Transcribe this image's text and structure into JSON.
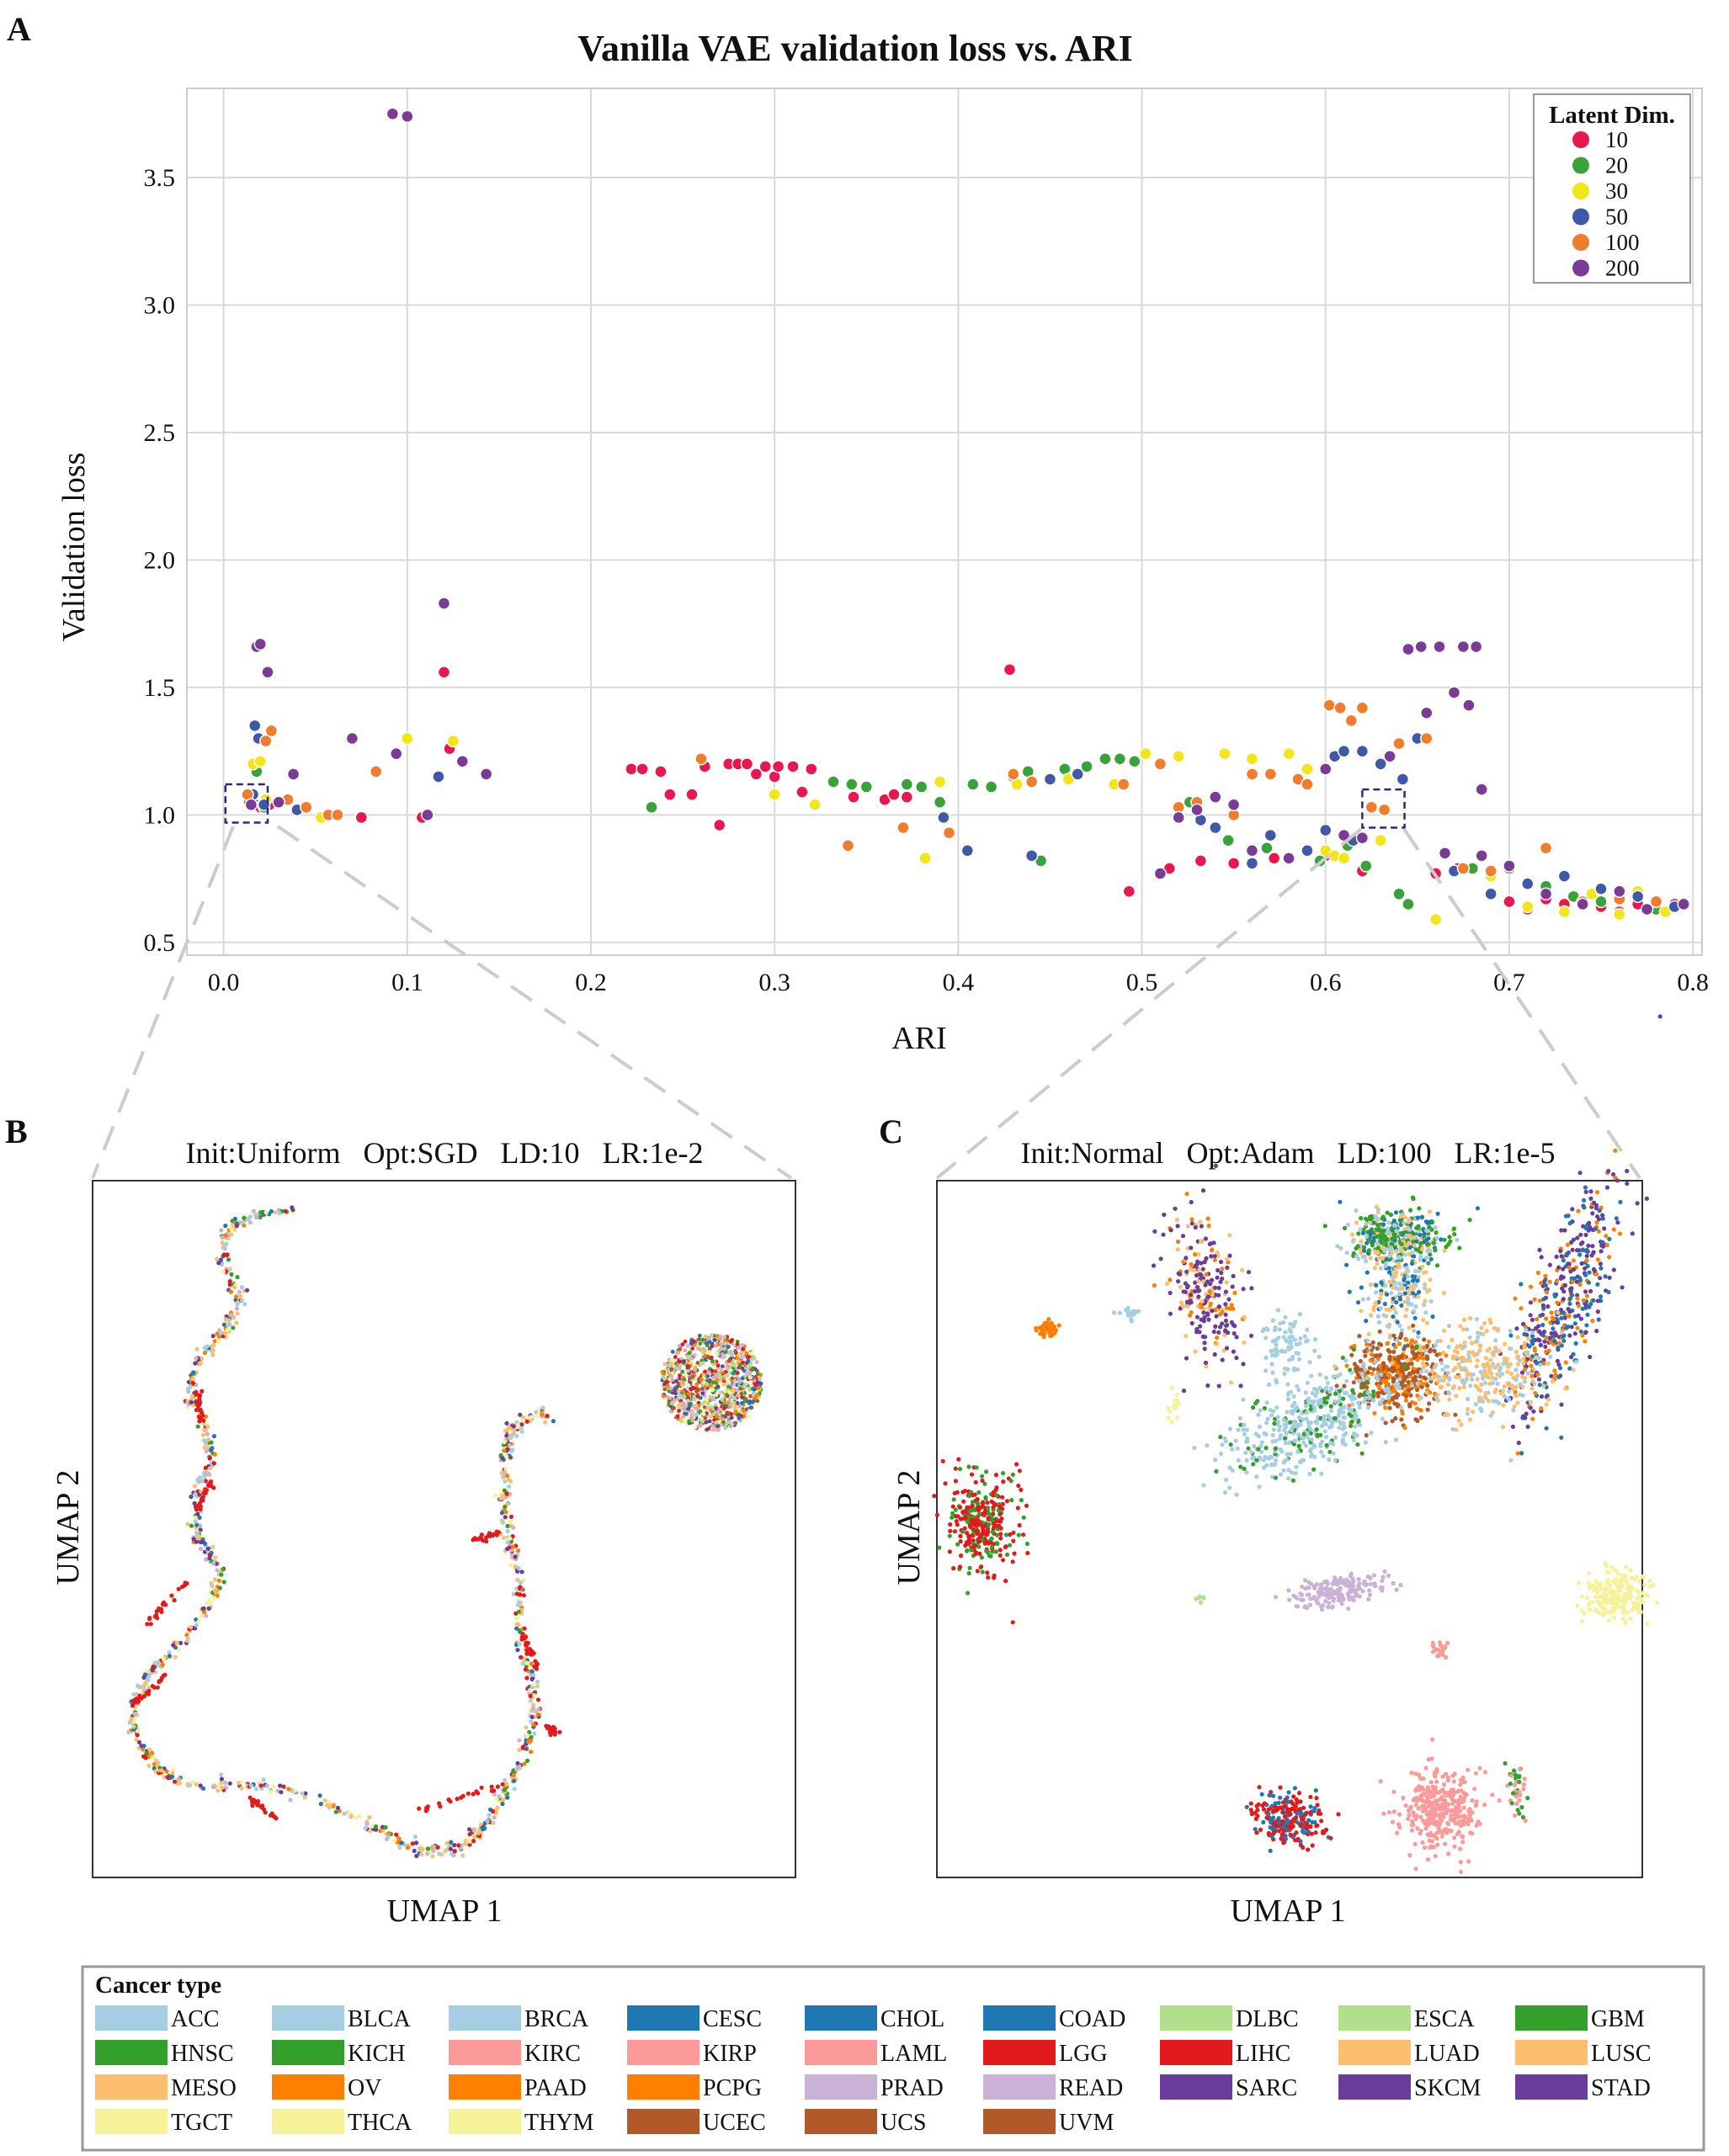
{
  "colors": {
    "ld10": "#e8174d",
    "ld20": "#3aa23a",
    "ld30": "#f2e51a",
    "ld50": "#3f58a8",
    "ld100": "#ef7d2d",
    "ld200": "#7a3a96",
    "ACC": "#a6cee3",
    "BLCA": "#a6cee3",
    "BRCA": "#a6cee3",
    "CESC": "#1f78b4",
    "CHOL": "#1f78b4",
    "COAD": "#1f78b4",
    "DLBC": "#b2df8a",
    "ESCA": "#b2df8a",
    "GBM": "#33a02c",
    "HNSC": "#33a02c",
    "KICH": "#33a02c",
    "KIRC": "#fb9a99",
    "KIRP": "#fb9a99",
    "LAML": "#fb9a99",
    "LGG": "#e31a1c",
    "LIHC": "#e31a1c",
    "LUAD": "#fdbf6f",
    "LUSC": "#fdbf6f",
    "MESO": "#fdbf6f",
    "OV": "#ff7f00",
    "PAAD": "#ff7f00",
    "PCPG": "#ff7f00",
    "PRAD": "#cab2d6",
    "READ": "#cab2d6",
    "SARC": "#6a3d9a",
    "SKCM": "#6a3d9a",
    "STAD": "#6a3d9a",
    "TGCT": "#f6f29a",
    "THCA": "#f6f29a",
    "THYM": "#f6f29a",
    "UCEC": "#b15928",
    "UCS": "#b15928",
    "UVM": "#b15928"
  },
  "chart_data": [
    {
      "panel_label": "A",
      "type": "scatter",
      "title": "Vanilla VAE validation loss vs. ARI",
      "xlabel": "ARI",
      "ylabel": "Validation loss",
      "xlim": [
        -0.02,
        0.805
      ],
      "ylim": [
        0.45,
        3.85
      ],
      "xticks": [
        "0.0",
        "0.1",
        "0.2",
        "0.3",
        "0.4",
        "0.5",
        "0.6",
        "0.7",
        "0.8"
      ],
      "xtick_values": [
        0,
        0.1,
        0.2,
        0.3,
        0.4,
        0.5,
        0.6,
        0.7,
        0.8
      ],
      "yticks": [
        "0.5",
        "1.0",
        "1.5",
        "2.0",
        "2.5",
        "3.0",
        "3.5"
      ],
      "ytick_values": [
        0.5,
        1.0,
        1.5,
        2.0,
        2.5,
        3.0,
        3.5
      ],
      "grid": true,
      "legend_title": "Latent Dim.",
      "legend_position": "top-right",
      "series": [
        {
          "name": "10",
          "color_key": "ld10",
          "points": [
            [
              0.017,
              1.04
            ],
            [
              0.02,
              1.03
            ],
            [
              0.025,
              1.04
            ],
            [
              0.075,
              0.99
            ],
            [
              0.12,
              1.56
            ],
            [
              0.123,
              1.26
            ],
            [
              0.108,
              0.99
            ],
            [
              0.222,
              1.18
            ],
            [
              0.228,
              1.18
            ],
            [
              0.238,
              1.17
            ],
            [
              0.243,
              1.08
            ],
            [
              0.255,
              1.08
            ],
            [
              0.262,
              1.19
            ],
            [
              0.27,
              0.96
            ],
            [
              0.275,
              1.2
            ],
            [
              0.28,
              1.2
            ],
            [
              0.285,
              1.2
            ],
            [
              0.29,
              1.16
            ],
            [
              0.295,
              1.19
            ],
            [
              0.3,
              1.15
            ],
            [
              0.302,
              1.19
            ],
            [
              0.31,
              1.19
            ],
            [
              0.315,
              1.09
            ],
            [
              0.32,
              1.18
            ],
            [
              0.343,
              1.07
            ],
            [
              0.35,
              1.11
            ],
            [
              0.36,
              1.06
            ],
            [
              0.365,
              1.08
            ],
            [
              0.372,
              1.07
            ],
            [
              0.428,
              1.57
            ],
            [
              0.493,
              0.7
            ],
            [
              0.515,
              0.79
            ],
            [
              0.532,
              0.82
            ],
            [
              0.55,
              0.81
            ],
            [
              0.56,
              0.81
            ],
            [
              0.572,
              0.83
            ],
            [
              0.6,
              0.84
            ],
            [
              0.62,
              0.78
            ],
            [
              0.66,
              0.77
            ],
            [
              0.672,
              0.79
            ],
            [
              0.7,
              0.66
            ],
            [
              0.71,
              0.63
            ],
            [
              0.72,
              0.67
            ],
            [
              0.73,
              0.65
            ],
            [
              0.74,
              0.66
            ],
            [
              0.75,
              0.64
            ],
            [
              0.76,
              0.62
            ],
            [
              0.77,
              0.65
            ],
            [
              0.78,
              0.64
            ],
            [
              0.79,
              0.65
            ]
          ]
        },
        {
          "name": "20",
          "color_key": "ld20",
          "points": [
            [
              0.014,
              1.05
            ],
            [
              0.018,
              1.17
            ],
            [
              0.022,
              1.03
            ],
            [
              0.233,
              1.03
            ],
            [
              0.332,
              1.13
            ],
            [
              0.342,
              1.12
            ],
            [
              0.35,
              1.11
            ],
            [
              0.372,
              1.12
            ],
            [
              0.38,
              1.11
            ],
            [
              0.39,
              1.05
            ],
            [
              0.408,
              1.12
            ],
            [
              0.418,
              1.11
            ],
            [
              0.43,
              1.15
            ],
            [
              0.438,
              1.17
            ],
            [
              0.445,
              0.82
            ],
            [
              0.458,
              1.18
            ],
            [
              0.47,
              1.19
            ],
            [
              0.48,
              1.22
            ],
            [
              0.488,
              1.22
            ],
            [
              0.496,
              1.21
            ],
            [
              0.526,
              1.05
            ],
            [
              0.547,
              0.9
            ],
            [
              0.56,
              0.86
            ],
            [
              0.568,
              0.87
            ],
            [
              0.597,
              0.82
            ],
            [
              0.612,
              0.88
            ],
            [
              0.622,
              0.8
            ],
            [
              0.64,
              0.69
            ],
            [
              0.645,
              0.65
            ],
            [
              0.68,
              0.79
            ],
            [
              0.7,
              0.79
            ],
            [
              0.72,
              0.72
            ],
            [
              0.735,
              0.68
            ],
            [
              0.75,
              0.66
            ],
            [
              0.78,
              0.63
            ]
          ]
        },
        {
          "name": "30",
          "color_key": "ld30",
          "points": [
            [
              0.016,
              1.2
            ],
            [
              0.02,
              1.21
            ],
            [
              0.023,
              1.06
            ],
            [
              0.053,
              0.99
            ],
            [
              0.1,
              1.3
            ],
            [
              0.125,
              1.29
            ],
            [
              0.3,
              1.08
            ],
            [
              0.322,
              1.04
            ],
            [
              0.382,
              0.83
            ],
            [
              0.39,
              1.13
            ],
            [
              0.432,
              1.12
            ],
            [
              0.46,
              1.14
            ],
            [
              0.485,
              1.12
            ],
            [
              0.502,
              1.24
            ],
            [
              0.52,
              1.23
            ],
            [
              0.545,
              1.24
            ],
            [
              0.56,
              1.22
            ],
            [
              0.58,
              1.24
            ],
            [
              0.59,
              1.18
            ],
            [
              0.6,
              0.86
            ],
            [
              0.605,
              0.84
            ],
            [
              0.61,
              0.83
            ],
            [
              0.63,
              0.9
            ],
            [
              0.66,
              0.59
            ],
            [
              0.69,
              0.76
            ],
            [
              0.71,
              0.64
            ],
            [
              0.73,
              0.62
            ],
            [
              0.745,
              0.69
            ],
            [
              0.76,
              0.61
            ],
            [
              0.77,
              0.7
            ],
            [
              0.785,
              0.62
            ]
          ]
        },
        {
          "name": "50",
          "color_key": "ld50",
          "points": [
            [
              0.016,
              1.08
            ],
            [
              0.017,
              1.35
            ],
            [
              0.019,
              1.3
            ],
            [
              0.022,
              1.04
            ],
            [
              0.04,
              1.02
            ],
            [
              0.117,
              1.15
            ],
            [
              0.392,
              0.99
            ],
            [
              0.405,
              0.86
            ],
            [
              0.44,
              0.84
            ],
            [
              0.45,
              1.14
            ],
            [
              0.465,
              1.16
            ],
            [
              0.52,
              1.03
            ],
            [
              0.532,
              0.98
            ],
            [
              0.54,
              0.95
            ],
            [
              0.56,
              0.81
            ],
            [
              0.57,
              0.92
            ],
            [
              0.59,
              0.86
            ],
            [
              0.6,
              0.94
            ],
            [
              0.605,
              1.23
            ],
            [
              0.61,
              1.25
            ],
            [
              0.615,
              0.9
            ],
            [
              0.62,
              1.25
            ],
            [
              0.63,
              1.2
            ],
            [
              0.642,
              1.14
            ],
            [
              0.65,
              1.3
            ],
            [
              0.67,
              0.78
            ],
            [
              0.69,
              0.69
            ],
            [
              0.71,
              0.73
            ],
            [
              0.73,
              0.76
            ],
            [
              0.75,
              0.71
            ],
            [
              0.77,
              0.68
            ],
            [
              0.79,
              0.64
            ]
          ]
        },
        {
          "name": "100",
          "color_key": "ld100",
          "points": [
            [
              0.013,
              1.08
            ],
            [
              0.023,
              1.29
            ],
            [
              0.026,
              1.33
            ],
            [
              0.035,
              1.06
            ],
            [
              0.045,
              1.03
            ],
            [
              0.057,
              1.0
            ],
            [
              0.062,
              1.0
            ],
            [
              0.083,
              1.17
            ],
            [
              0.26,
              1.22
            ],
            [
              0.34,
              0.88
            ],
            [
              0.37,
              0.95
            ],
            [
              0.395,
              0.93
            ],
            [
              0.43,
              1.16
            ],
            [
              0.44,
              1.13
            ],
            [
              0.49,
              1.12
            ],
            [
              0.51,
              1.2
            ],
            [
              0.52,
              1.03
            ],
            [
              0.53,
              1.05
            ],
            [
              0.55,
              1.0
            ],
            [
              0.56,
              1.16
            ],
            [
              0.57,
              1.16
            ],
            [
              0.585,
              1.14
            ],
            [
              0.59,
              1.12
            ],
            [
              0.602,
              1.43
            ],
            [
              0.608,
              1.42
            ],
            [
              0.614,
              1.37
            ],
            [
              0.62,
              1.42
            ],
            [
              0.625,
              1.03
            ],
            [
              0.632,
              1.02
            ],
            [
              0.64,
              1.28
            ],
            [
              0.655,
              1.3
            ],
            [
              0.675,
              0.79
            ],
            [
              0.69,
              0.78
            ],
            [
              0.72,
              0.87
            ],
            [
              0.74,
              0.66
            ],
            [
              0.76,
              0.67
            ],
            [
              0.78,
              0.66
            ]
          ]
        },
        {
          "name": "200",
          "color_key": "ld200",
          "points": [
            [
              0.092,
              3.75
            ],
            [
              0.1,
              3.74
            ],
            [
              0.018,
              1.66
            ],
            [
              0.02,
              1.67
            ],
            [
              0.024,
              1.56
            ],
            [
              0.015,
              1.04
            ],
            [
              0.038,
              1.16
            ],
            [
              0.03,
              1.05
            ],
            [
              0.07,
              1.3
            ],
            [
              0.094,
              1.24
            ],
            [
              0.111,
              1.0
            ],
            [
              0.12,
              1.83
            ],
            [
              0.13,
              1.21
            ],
            [
              0.143,
              1.16
            ],
            [
              0.51,
              0.77
            ],
            [
              0.52,
              0.99
            ],
            [
              0.53,
              1.02
            ],
            [
              0.54,
              1.07
            ],
            [
              0.55,
              1.04
            ],
            [
              0.56,
              0.86
            ],
            [
              0.58,
              0.83
            ],
            [
              0.6,
              1.18
            ],
            [
              0.61,
              0.92
            ],
            [
              0.62,
              0.91
            ],
            [
              0.635,
              1.23
            ],
            [
              0.645,
              1.65
            ],
            [
              0.652,
              1.66
            ],
            [
              0.662,
              1.66
            ],
            [
              0.675,
              1.66
            ],
            [
              0.682,
              1.66
            ],
            [
              0.655,
              1.4
            ],
            [
              0.67,
              1.48
            ],
            [
              0.678,
              1.43
            ],
            [
              0.685,
              1.1
            ],
            [
              0.665,
              0.85
            ],
            [
              0.685,
              0.84
            ],
            [
              0.7,
              0.8
            ],
            [
              0.72,
              0.69
            ],
            [
              0.74,
              0.65
            ],
            [
              0.76,
              0.7
            ],
            [
              0.775,
              0.63
            ],
            [
              0.795,
              0.65
            ]
          ]
        }
      ],
      "zoom_boxes": [
        {
          "x": [
            0.001,
            0.024
          ],
          "y": [
            0.97,
            1.12
          ],
          "links_to": "B"
        },
        {
          "x": [
            0.62,
            0.643
          ],
          "y": [
            0.95,
            1.1
          ],
          "links_to": "C"
        }
      ]
    },
    {
      "panel_label": "B",
      "type": "scatter",
      "title": "Init:Uniform   Opt:SGD   LD:10   LR:1e-2",
      "xlabel": "UMAP 1",
      "ylabel": "UMAP 2",
      "note": "points colored by cancer type"
    },
    {
      "panel_label": "C",
      "type": "scatter",
      "title": "Init:Normal   Opt:Adam   LD:100   LR:1e-5",
      "xlabel": "UMAP 1",
      "ylabel": "UMAP 2",
      "note": "points colored by cancer type"
    }
  ],
  "cancer_legend": {
    "title": "Cancer type",
    "items": [
      "ACC",
      "BLCA",
      "BRCA",
      "CESC",
      "CHOL",
      "COAD",
      "DLBC",
      "ESCA",
      "GBM",
      "HNSC",
      "KICH",
      "KIRC",
      "KIRP",
      "LAML",
      "LGG",
      "LIHC",
      "LUAD",
      "LUSC",
      "MESO",
      "OV",
      "PAAD",
      "PCPG",
      "PRAD",
      "READ",
      "SARC",
      "SKCM",
      "STAD",
      "TGCT",
      "THCA",
      "THYM",
      "UCEC",
      "UCS",
      "UVM"
    ]
  }
}
